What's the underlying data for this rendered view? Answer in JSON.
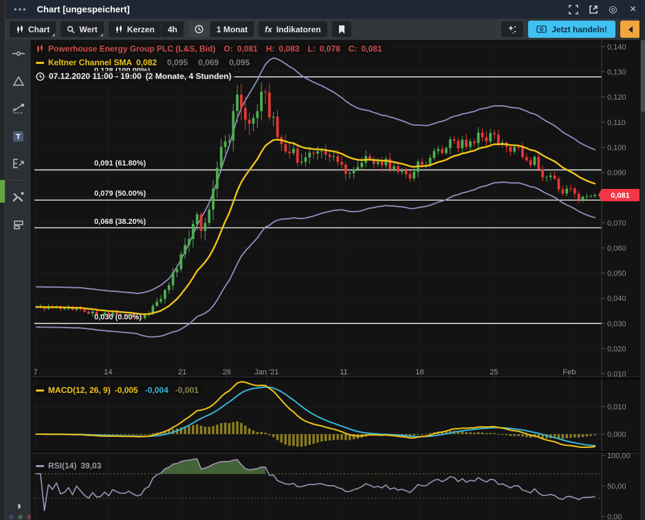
{
  "window": {
    "menu_dots": "•••",
    "title": "Chart [ungespeichert]"
  },
  "toolbar": {
    "chart_label": "Chart",
    "wert_label": "Wert",
    "kerzen_label": "Kerzen",
    "timeframe_label": "4h",
    "period_label": "1 Monat",
    "indicators_label": "Indikatoren",
    "fx_glyph": "fx",
    "trade_label": "Jetzt handeln!"
  },
  "legend": {
    "symbol": {
      "name": "Powerhouse Energy Group PLC (L&S, Bid)",
      "o_label": "O:",
      "o": "0,081",
      "h_label": "H:",
      "h": "0,083",
      "l_label": "L:",
      "l": "0,078",
      "c_label": "C:",
      "c": "0,081"
    },
    "keltner": {
      "name": "Keltner Channel SMA",
      "value": "0,082",
      "p1": "0,095",
      "p2": "0,069",
      "p3": "0,095"
    },
    "daterange": "07.12.2020 11:00 - 19:00",
    "daterange2": "(2 Monate, 4 Stunden)"
  },
  "macd_legend": {
    "label": "MACD(12, 26, 9)",
    "macd": "-0,005",
    "signal": "-0,004",
    "hist": "-0,001"
  },
  "rsi_legend": {
    "label": "RSI(14)",
    "value": "39,03"
  },
  "price_badge": "0,081",
  "colors": {
    "up": "#4caf50",
    "down": "#e53935",
    "sma": "#f0c419",
    "band": "#918fc0",
    "macd": "#f0c419",
    "signal": "#38b5d8",
    "hist": "#8a7d22",
    "rsi_line": "#9a97b8",
    "rsi_fill": "#4a6b3c",
    "rsi_ob": "#5d8c3f",
    "rsi_os": "#8b4a4a",
    "fib": "#e6e6e6",
    "badge": "#f23645",
    "axis_text": "#8c8c8c",
    "grid": "#1d1d1d",
    "vgrid": "#1b1b1b",
    "axis_line": "#3c3c3c"
  },
  "chart_data": {
    "type": "candlestick",
    "n_candles": 140,
    "price_range": [
      0.01,
      0.14
    ],
    "price_ticks": [
      {
        "v": 0.14,
        "label": "0,140"
      },
      {
        "v": 0.13,
        "label": "0,130"
      },
      {
        "v": 0.12,
        "label": "0,120"
      },
      {
        "v": 0.11,
        "label": "0,110"
      },
      {
        "v": 0.1,
        "label": "0,100"
      },
      {
        "v": 0.09,
        "label": "0,090"
      },
      {
        "v": 0.08,
        "label": "0,080"
      },
      {
        "v": 0.07,
        "label": "0,070"
      },
      {
        "v": 0.06,
        "label": "0,060"
      },
      {
        "v": 0.05,
        "label": "0,050"
      },
      {
        "v": 0.04,
        "label": "0,040"
      },
      {
        "v": 0.03,
        "label": "0,030"
      },
      {
        "v": 0.02,
        "label": "0,020"
      },
      {
        "v": 0.01,
        "label": "0,010"
      }
    ],
    "x_ticks": [
      {
        "t": 0.002,
        "label": "7"
      },
      {
        "t": 0.131,
        "label": "14"
      },
      {
        "t": 0.263,
        "label": "21"
      },
      {
        "t": 0.342,
        "label": "28"
      },
      {
        "t": 0.413,
        "label": "Jan '21"
      },
      {
        "t": 0.55,
        "label": "11"
      },
      {
        "t": 0.685,
        "label": "18"
      },
      {
        "t": 0.817,
        "label": "25"
      },
      {
        "t": 0.951,
        "label": "Feb"
      }
    ],
    "fib_levels": [
      {
        "price": 0.128,
        "label": "0,128 (100.00%)"
      },
      {
        "price": 0.091,
        "label": "0,091 (61.80%)"
      },
      {
        "price": 0.079,
        "label": "0,079 (50.00%)"
      },
      {
        "price": 0.068,
        "label": "0,068 (38.20%)"
      },
      {
        "price": 0.03,
        "label": "0,030 (0.00%)"
      }
    ],
    "last_price": 0.081,
    "close_anchors": [
      [
        0.0,
        0.036
      ],
      [
        0.037,
        0.036
      ],
      [
        0.074,
        0.0355
      ],
      [
        0.11,
        0.034
      ],
      [
        0.147,
        0.0335
      ],
      [
        0.184,
        0.0325
      ],
      [
        0.202,
        0.034
      ],
      [
        0.214,
        0.038
      ],
      [
        0.233,
        0.044
      ],
      [
        0.251,
        0.052
      ],
      [
        0.27,
        0.063
      ],
      [
        0.288,
        0.072
      ],
      [
        0.3,
        0.068
      ],
      [
        0.313,
        0.082
      ],
      [
        0.325,
        0.096
      ],
      [
        0.333,
        0.105
      ],
      [
        0.343,
        0.098
      ],
      [
        0.353,
        0.112
      ],
      [
        0.362,
        0.12
      ],
      [
        0.37,
        0.113
      ],
      [
        0.38,
        0.106
      ],
      [
        0.39,
        0.112
      ],
      [
        0.4,
        0.119
      ],
      [
        0.408,
        0.124
      ],
      [
        0.417,
        0.115
      ],
      [
        0.427,
        0.108
      ],
      [
        0.435,
        0.102
      ],
      [
        0.444,
        0.096
      ],
      [
        0.453,
        0.1
      ],
      [
        0.463,
        0.096
      ],
      [
        0.472,
        0.091
      ],
      [
        0.482,
        0.097
      ],
      [
        0.49,
        0.1
      ],
      [
        0.5,
        0.097
      ],
      [
        0.509,
        0.099
      ],
      [
        0.517,
        0.096
      ],
      [
        0.527,
        0.094
      ],
      [
        0.539,
        0.096
      ],
      [
        0.551,
        0.092
      ],
      [
        0.564,
        0.088
      ],
      [
        0.576,
        0.092
      ],
      [
        0.588,
        0.095
      ],
      [
        0.6,
        0.096
      ],
      [
        0.613,
        0.093
      ],
      [
        0.625,
        0.095
      ],
      [
        0.637,
        0.092
      ],
      [
        0.647,
        0.089
      ],
      [
        0.657,
        0.091
      ],
      [
        0.667,
        0.087
      ],
      [
        0.677,
        0.091
      ],
      [
        0.686,
        0.094
      ],
      [
        0.696,
        0.092
      ],
      [
        0.706,
        0.096
      ],
      [
        0.716,
        0.099
      ],
      [
        0.725,
        0.096
      ],
      [
        0.735,
        0.1
      ],
      [
        0.745,
        0.103
      ],
      [
        0.755,
        0.101
      ],
      [
        0.765,
        0.104
      ],
      [
        0.774,
        0.1
      ],
      [
        0.784,
        0.103
      ],
      [
        0.794,
        0.105
      ],
      [
        0.804,
        0.102
      ],
      [
        0.814,
        0.105
      ],
      [
        0.823,
        0.103
      ],
      [
        0.833,
        0.1
      ],
      [
        0.843,
        0.102
      ],
      [
        0.853,
        0.098
      ],
      [
        0.863,
        0.1
      ],
      [
        0.872,
        0.096
      ],
      [
        0.882,
        0.092
      ],
      [
        0.892,
        0.095
      ],
      [
        0.902,
        0.091
      ],
      [
        0.912,
        0.087
      ],
      [
        0.921,
        0.09
      ],
      [
        0.931,
        0.085
      ],
      [
        0.941,
        0.082
      ],
      [
        0.951,
        0.085
      ],
      [
        0.961,
        0.081
      ],
      [
        0.971,
        0.079
      ],
      [
        0.98,
        0.082
      ],
      [
        0.99,
        0.08
      ],
      [
        1.0,
        0.081
      ]
    ],
    "volatility_anchors": [
      [
        0.0,
        0.0012
      ],
      [
        0.18,
        0.0012
      ],
      [
        0.24,
        0.002
      ],
      [
        0.3,
        0.0045
      ],
      [
        0.36,
        0.005
      ],
      [
        0.42,
        0.0045
      ],
      [
        0.5,
        0.003
      ],
      [
        0.6,
        0.0025
      ],
      [
        0.7,
        0.0025
      ],
      [
        0.8,
        0.0025
      ],
      [
        0.9,
        0.002
      ],
      [
        1.0,
        0.0015
      ]
    ],
    "keltner_width_anchors": [
      [
        0.0,
        0.008
      ],
      [
        0.18,
        0.008
      ],
      [
        0.24,
        0.011
      ],
      [
        0.3,
        0.02
      ],
      [
        0.36,
        0.029
      ],
      [
        0.42,
        0.033
      ],
      [
        0.48,
        0.028
      ],
      [
        0.55,
        0.022
      ],
      [
        0.62,
        0.018
      ],
      [
        0.7,
        0.016
      ],
      [
        0.8,
        0.0155
      ],
      [
        0.9,
        0.0145
      ],
      [
        1.0,
        0.0135
      ]
    ],
    "keltner_period": 18,
    "macd_params": [
      12,
      26,
      9
    ],
    "macd_ticks": [
      {
        "v": 0.01,
        "label": "0,010"
      },
      {
        "v": 0.0,
        "label": "0,000"
      }
    ],
    "rsi_period": 14,
    "rsi_ticks": [
      {
        "v": 100,
        "label": "100,00"
      },
      {
        "v": 50,
        "label": "50,00"
      },
      {
        "v": 0,
        "label": "0,00"
      }
    ],
    "rsi_overbought": 70,
    "rsi_oversold": 30
  }
}
